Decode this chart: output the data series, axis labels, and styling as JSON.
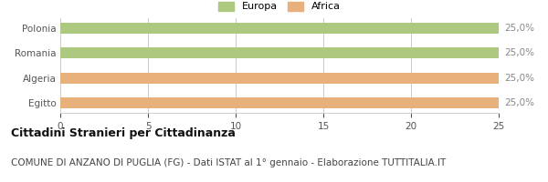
{
  "categories": [
    "Polonia",
    "Romania",
    "Algeria",
    "Egitto"
  ],
  "values": [
    25,
    25,
    25,
    25
  ],
  "bar_colors": [
    "#adc97f",
    "#adc97f",
    "#e8b07a",
    "#e8b07a"
  ],
  "value_labels": [
    "25,0%",
    "25,0%",
    "25,0%",
    "25,0%"
  ],
  "xlim": [
    0,
    25
  ],
  "xticks": [
    0,
    5,
    10,
    15,
    20,
    25
  ],
  "legend_entries": [
    {
      "label": "Europa",
      "color": "#adc97f"
    },
    {
      "label": "Africa",
      "color": "#e8b07a"
    }
  ],
  "title": "Cittadini Stranieri per Cittadinanza",
  "subtitle": "COMUNE DI ANZANO DI PUGLIA (FG) - Dati ISTAT al 1° gennaio - Elaborazione TUTTITALIA.IT",
  "background_color": "#ffffff",
  "grid_color": "#cccccc",
  "bar_height": 0.45,
  "title_fontsize": 9,
  "subtitle_fontsize": 7.5,
  "tick_fontsize": 7.5,
  "label_fontsize": 8,
  "value_label_fontsize": 7.5,
  "value_label_color": "#888888"
}
